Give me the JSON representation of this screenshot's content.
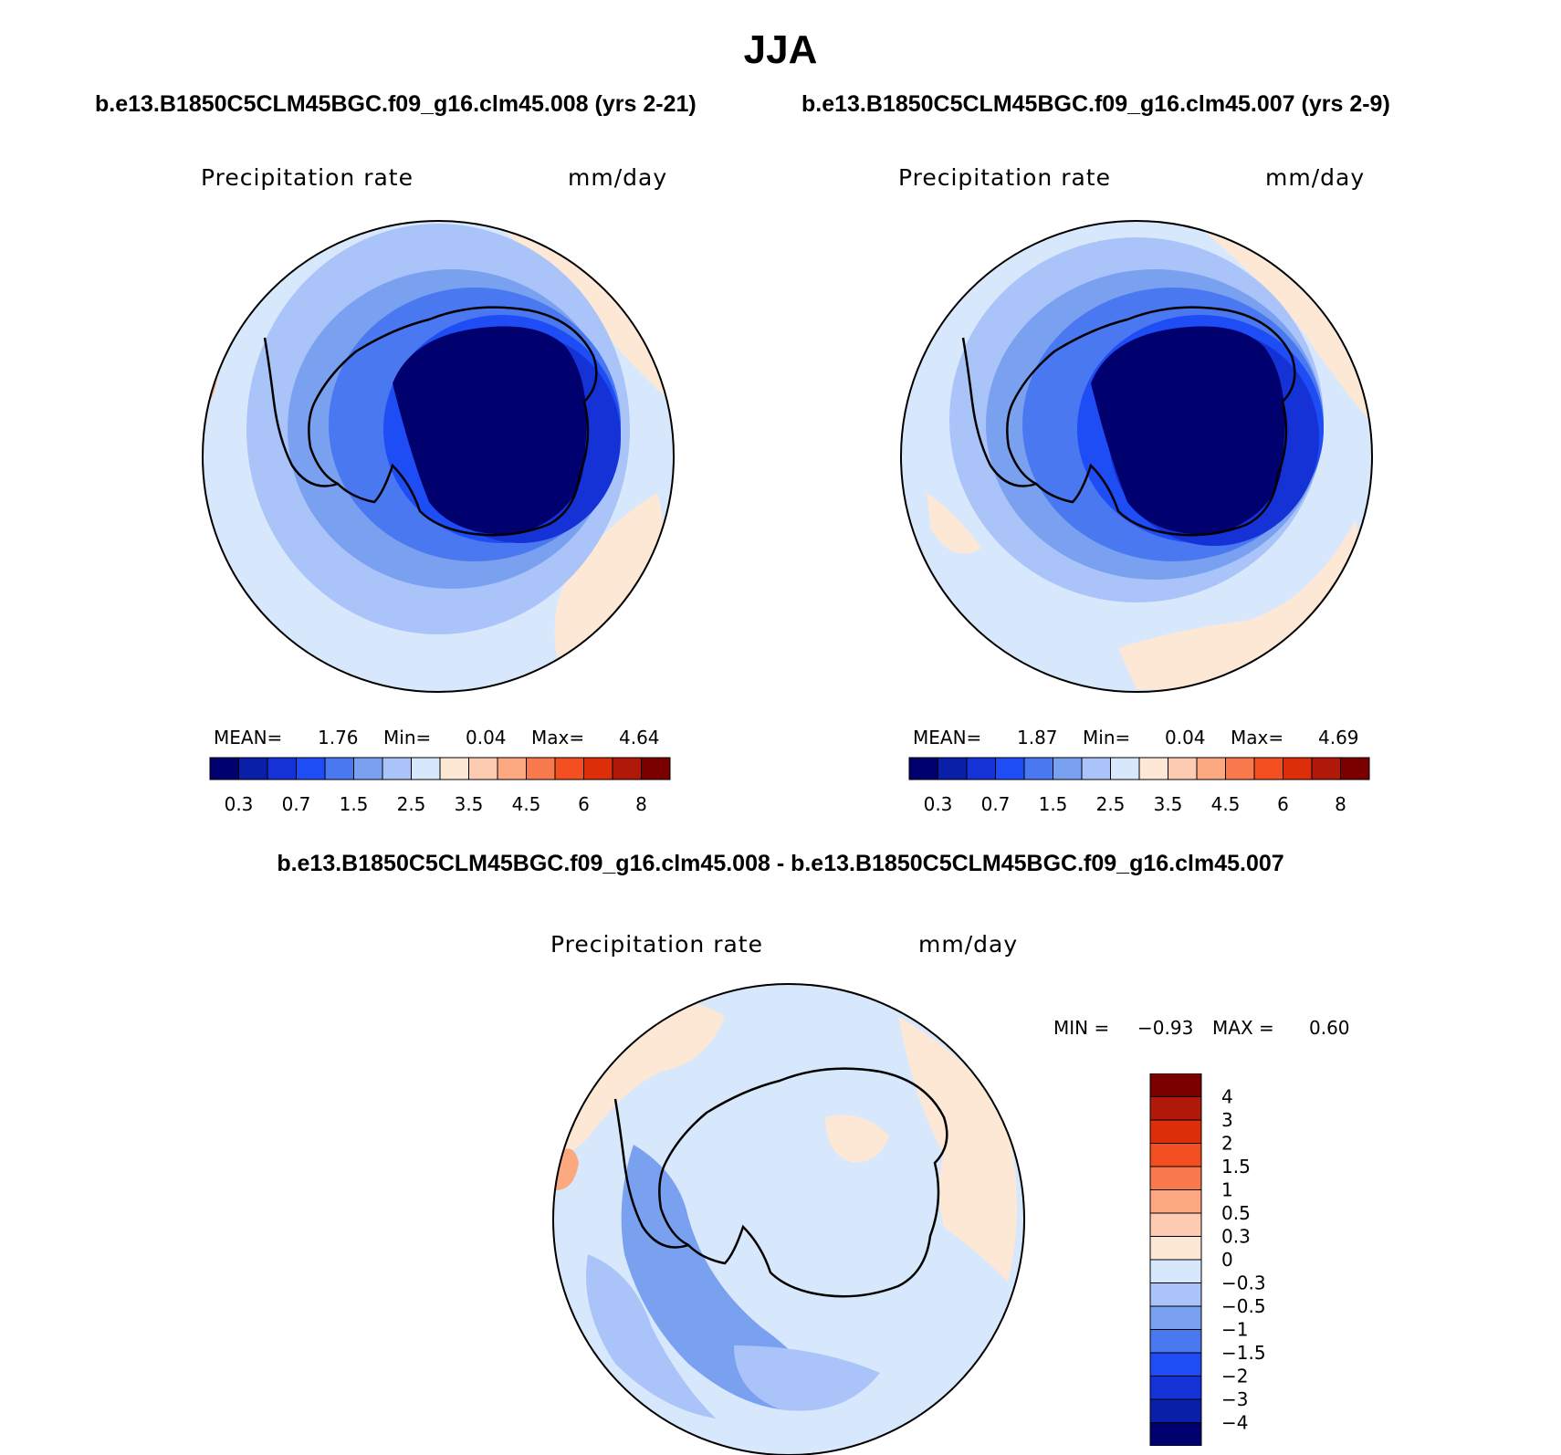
{
  "title": "JJA",
  "panels": [
    {
      "case": "b.e13.B1850C5CLM45BGC.f09_g16.clm45.008 (yrs 2-21)",
      "variable": "Precipitation rate",
      "units": "mm/day",
      "mean_label": "MEAN=",
      "mean": "1.76",
      "min_label": "Min=",
      "min": "0.04",
      "max_label": "Max=",
      "max": "4.64"
    },
    {
      "case": "b.e13.B1850C5CLM45BGC.f09_g16.clm45.007 (yrs 2-9)",
      "variable": "Precipitation rate",
      "units": "mm/day",
      "mean_label": "MEAN=",
      "mean": "1.87",
      "min_label": "Min=",
      "min": "0.04",
      "max_label": "Max=",
      "max": "4.69"
    }
  ],
  "difference": {
    "title": "b.e13.B1850C5CLM45BGC.f09_g16.clm45.008 - b.e13.B1850C5CLM45BGC.f09_g16.clm45.007",
    "variable": "Precipitation rate",
    "units": "mm/day",
    "min_label": "MIN =",
    "min": "−0.93",
    "max_label": "MAX =",
    "max": "0.60"
  },
  "colorbars": {
    "abs": {
      "colors": [
        "#00006e",
        "#0a1fa8",
        "#1432d6",
        "#1e4cf5",
        "#4a78f0",
        "#7aa0f0",
        "#aac4fa",
        "#d8e8fc",
        "#fde8d6",
        "#fccbb2",
        "#fca880",
        "#f87a4c",
        "#f34f20",
        "#dd2e0a",
        "#b0180a",
        "#7a0000"
      ],
      "labels": [
        "0.3",
        "0.7",
        "1.5",
        "2.5",
        "3.5",
        "4.5",
        "6",
        "8"
      ]
    },
    "diff": {
      "colors_top_to_bottom": [
        "#7a0000",
        "#b0180a",
        "#dd2e0a",
        "#f34f20",
        "#f87a4c",
        "#fca880",
        "#fccbb2",
        "#fde8d6",
        "#d8e8fc",
        "#aac4fa",
        "#7aa0f0",
        "#4a78f0",
        "#1e4cf5",
        "#1432d6",
        "#0a1fa8",
        "#00006e"
      ],
      "labels": [
        "4",
        "3",
        "2",
        "1.5",
        "1",
        "0.5",
        "0.3",
        "0",
        "−0.3",
        "−0.5",
        "−1",
        "−1.5",
        "−2",
        "−3",
        "−4"
      ]
    }
  }
}
